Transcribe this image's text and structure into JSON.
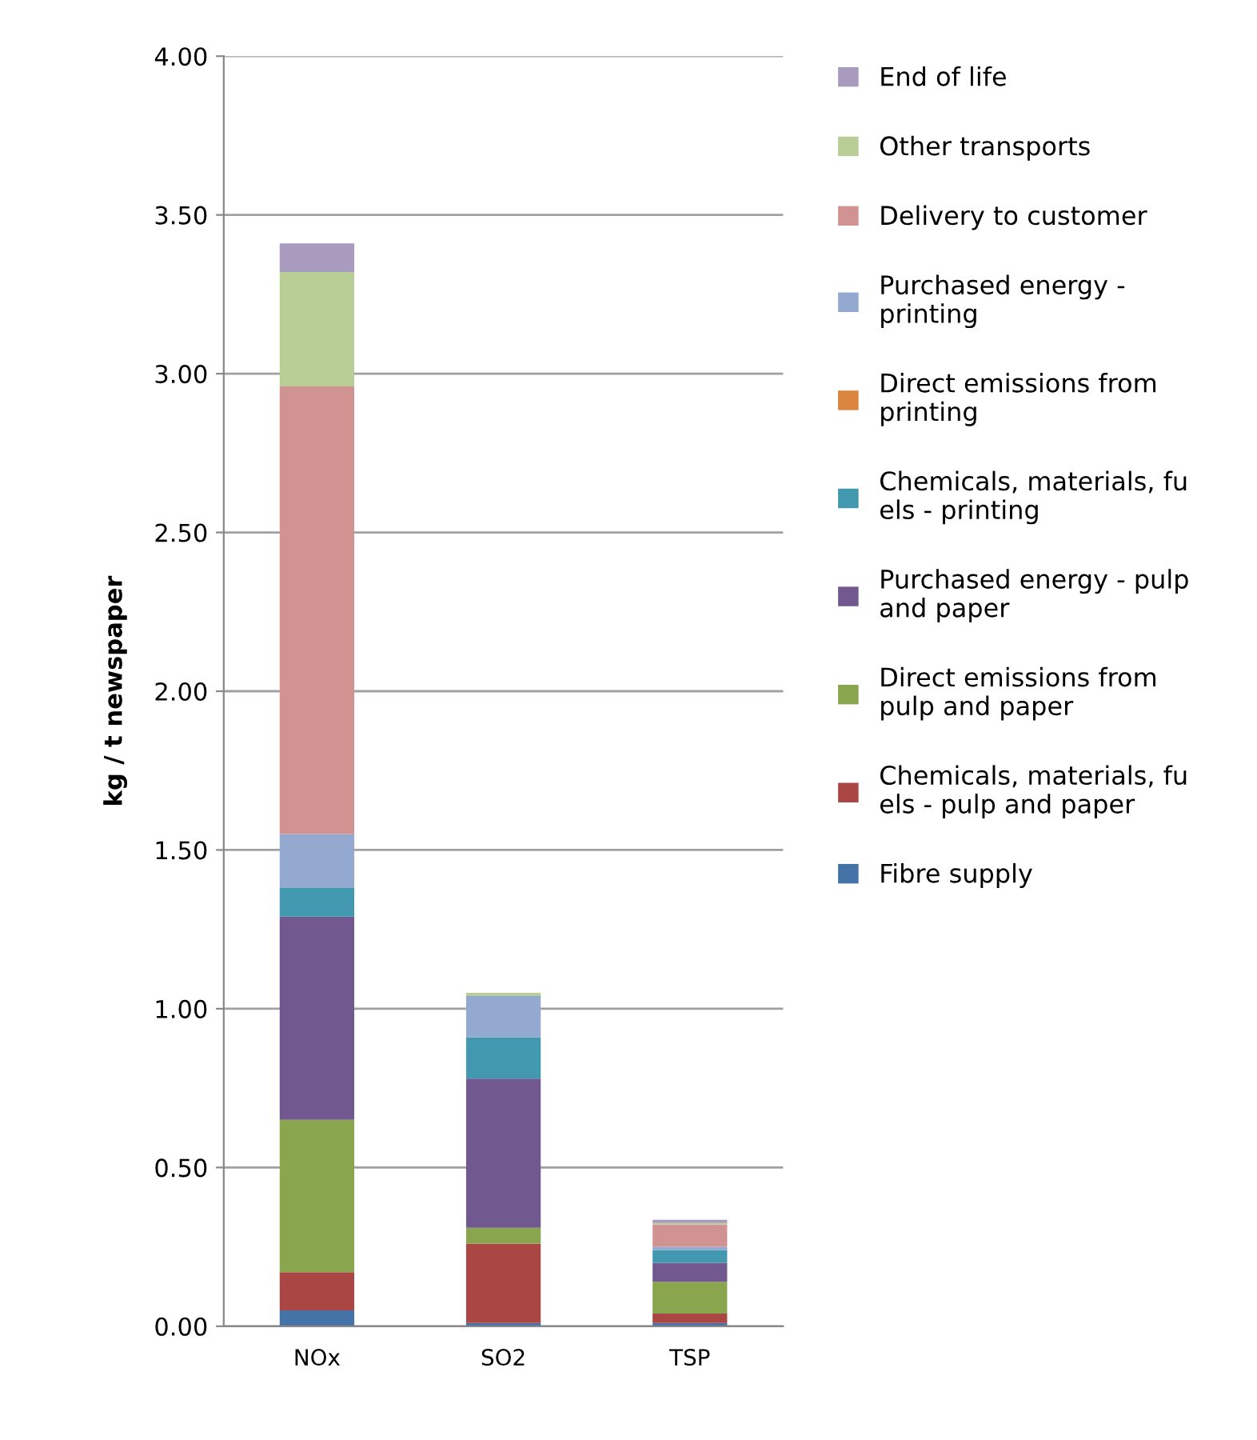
{
  "chart_data": {
    "type": "bar",
    "stacked": true,
    "ylabel": "kg / t newspaper",
    "categories": [
      "NOx",
      "SO2",
      "TSP"
    ],
    "series": [
      {
        "name": "Fibre supply",
        "color": "#4572a7",
        "values": [
          0.05,
          0.01,
          0.01
        ]
      },
      {
        "name": "Chemicals, materials, fu\nels - pulp and paper",
        "color": "#aa4643",
        "values": [
          0.12,
          0.25,
          0.03
        ]
      },
      {
        "name": "Direct emissions from\npulp and paper",
        "color": "#89a54e",
        "values": [
          0.48,
          0.05,
          0.1
        ]
      },
      {
        "name": "Purchased energy - pulp\nand paper",
        "color": "#71588f",
        "values": [
          0.64,
          0.47,
          0.06
        ]
      },
      {
        "name": "Chemicals, materials, fu\nels - printing",
        "color": "#4198af",
        "values": [
          0.09,
          0.13,
          0.04
        ]
      },
      {
        "name": "Direct emissions from\nprinting",
        "color": "#db843d",
        "values": [
          0,
          0,
          0
        ]
      },
      {
        "name": "Purchased energy -\nprinting",
        "color": "#93a9cf",
        "values": [
          0.17,
          0.13,
          0.01
        ]
      },
      {
        "name": "Delivery to customer",
        "color": "#d19392",
        "values": [
          1.41,
          0,
          0.07
        ]
      },
      {
        "name": "Other transports",
        "color": "#b9cd96",
        "values": [
          0.36,
          0.01,
          0.005
        ]
      },
      {
        "name": "End of life",
        "color": "#a99bbd",
        "values": [
          0.09,
          0,
          0.01
        ]
      }
    ],
    "ylim": [
      0,
      4
    ],
    "yticks": [
      {
        "value": 0,
        "label": "0.00"
      },
      {
        "value": 0.5,
        "label": "0.50"
      },
      {
        "value": 1,
        "label": "1.00"
      },
      {
        "value": 1.5,
        "label": "1.50"
      },
      {
        "value": 2,
        "label": "2.00"
      },
      {
        "value": 2.5,
        "label": "2.50"
      },
      {
        "value": 3,
        "label": "3.00"
      },
      {
        "value": 3.5,
        "label": "3.50"
      },
      {
        "value": 4,
        "label": "4.00"
      }
    ],
    "grid": "y",
    "legend": "right"
  }
}
